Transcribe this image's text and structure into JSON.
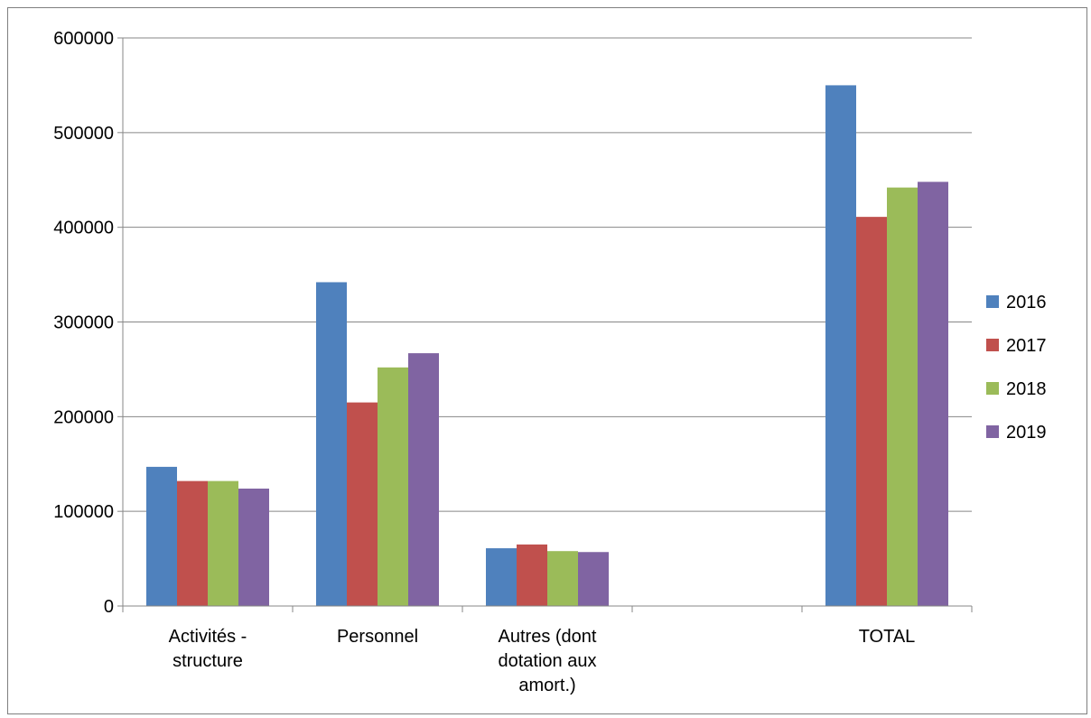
{
  "chart_data": {
    "type": "bar",
    "categories": [
      [
        "Activités -",
        "structure"
      ],
      [
        "Personnel"
      ],
      [
        "Autres (dont",
        "dotation aux",
        "amort.)"
      ],
      [
        ""
      ],
      [
        "TOTAL"
      ]
    ],
    "series": [
      {
        "name": "2016",
        "color": "#4f81bd",
        "values": [
          147000,
          342000,
          61000,
          null,
          550000
        ]
      },
      {
        "name": "2017",
        "color": "#c0504d",
        "values": [
          132000,
          215000,
          65000,
          null,
          411000
        ]
      },
      {
        "name": "2018",
        "color": "#9bbb59",
        "values": [
          132000,
          252000,
          58000,
          null,
          442000
        ]
      },
      {
        "name": "2019",
        "color": "#8064a2",
        "values": [
          124000,
          267000,
          57000,
          null,
          448000
        ]
      }
    ],
    "yticks": [
      "0",
      "100000",
      "200000",
      "300000",
      "400000",
      "500000",
      "600000"
    ],
    "ylim": [
      0,
      600000
    ],
    "grid": true,
    "legend": "right"
  }
}
